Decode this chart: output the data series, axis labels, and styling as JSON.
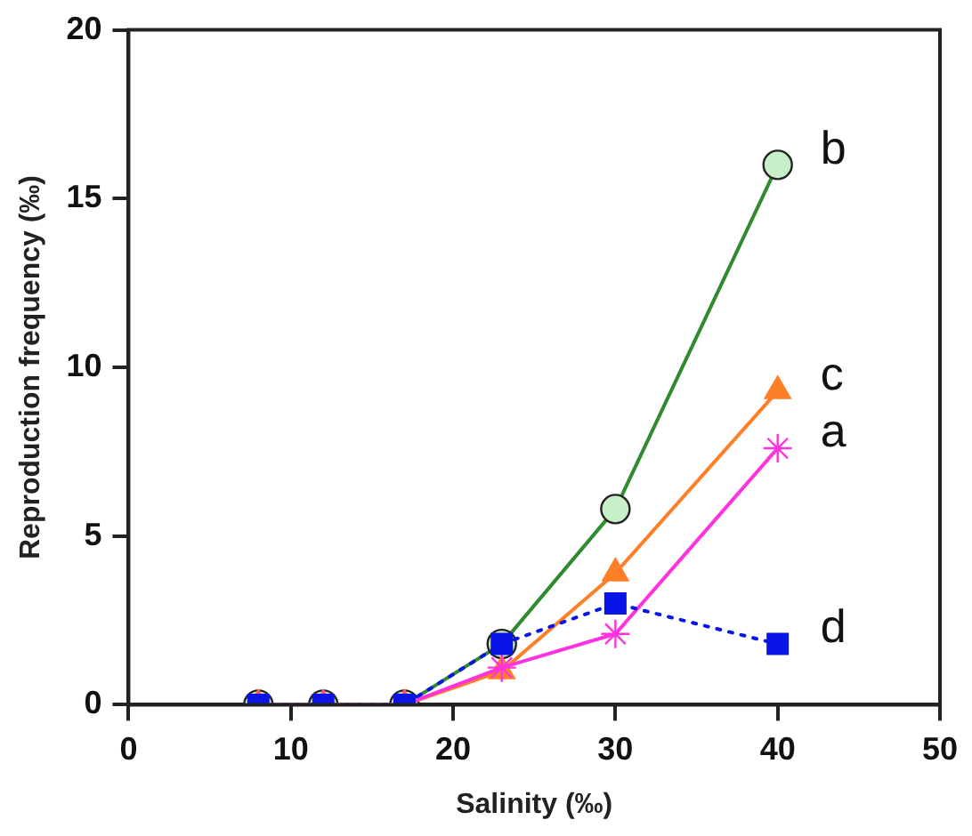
{
  "chart_data": {
    "type": "line",
    "xlabel": "Salinity (‰)",
    "ylabel": "Reproduction frequency (‰)",
    "x": [
      8,
      12,
      17,
      23,
      30,
      40
    ],
    "xlim": [
      0,
      50
    ],
    "xticks": [
      0,
      10,
      20,
      30,
      40,
      50
    ],
    "ylim": [
      0,
      20
    ],
    "yticks": [
      0,
      5,
      10,
      15,
      20
    ],
    "grid": false,
    "legend": false,
    "series": [
      {
        "name": "b",
        "color": "#2e8b2e",
        "marker": "circle",
        "line_style": "solid",
        "values": [
          0,
          0,
          0,
          1.8,
          5.8,
          16.0
        ]
      },
      {
        "name": "c",
        "color": "#ff7f27",
        "marker": "triangle",
        "line_style": "solid",
        "values": [
          0,
          0,
          0,
          1.0,
          3.9,
          9.3
        ]
      },
      {
        "name": "a",
        "color": "#ff33dd",
        "marker": "cross",
        "line_style": "solid",
        "values": [
          0,
          0,
          0,
          1.1,
          2.1,
          7.6
        ]
      },
      {
        "name": "d",
        "color": "#0a14e6",
        "marker": "square",
        "line_style": "dotted",
        "values": [
          0,
          0,
          0,
          1.8,
          3.0,
          1.8
        ]
      }
    ]
  }
}
